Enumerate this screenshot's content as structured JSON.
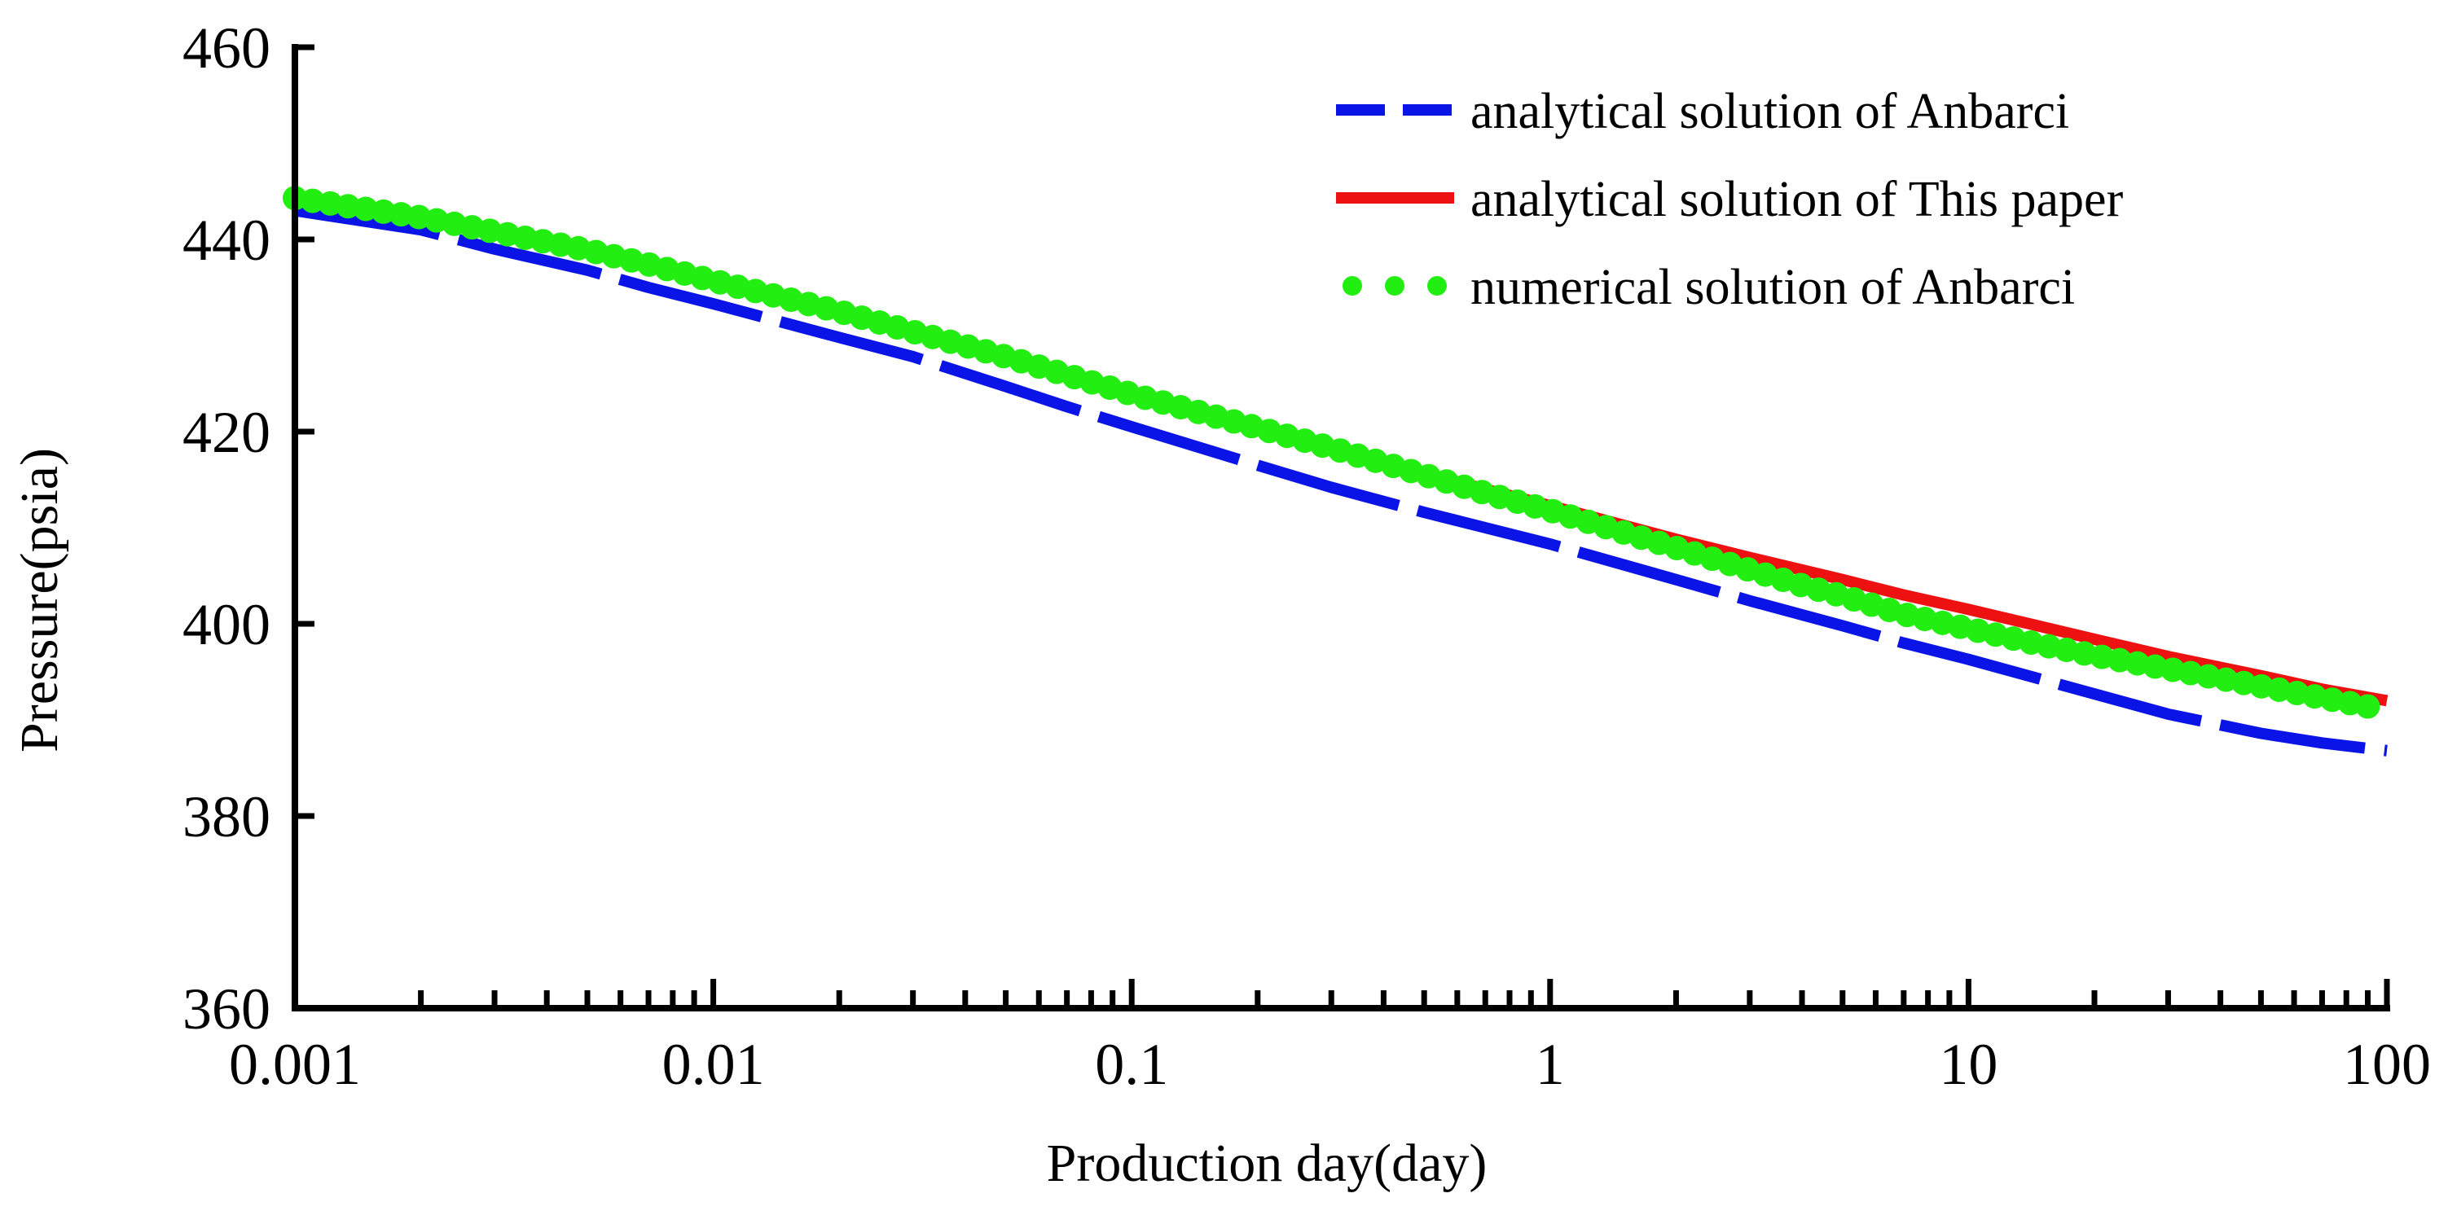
{
  "chart_data": {
    "type": "line",
    "title": "",
    "xlabel": "Production day(day)",
    "ylabel": "Pressure(psia)",
    "xscale": "log",
    "xlim": [
      0.001,
      100
    ],
    "ylim": [
      360,
      460
    ],
    "xticks": [
      0.001,
      0.01,
      0.1,
      1,
      10,
      100
    ],
    "xtick_labels": [
      "0.001",
      "0.01",
      "0.1",
      "1",
      "10",
      "100"
    ],
    "yticks": [
      360,
      380,
      400,
      420,
      440,
      460
    ],
    "ytick_labels": [
      "360",
      "380",
      "400",
      "420",
      "440",
      "460"
    ],
    "grid": false,
    "legend_position": "top-right",
    "series": [
      {
        "name": "analytical solution of Anbarci",
        "style": "dashed",
        "color": "#0a14e6",
        "x": [
          0.001,
          0.002,
          0.003,
          0.005,
          0.007,
          0.01,
          0.02,
          0.03,
          0.05,
          0.07,
          0.1,
          0.2,
          0.3,
          0.5,
          0.7,
          1,
          2,
          3,
          5,
          7,
          10,
          20,
          30,
          50,
          70,
          100
        ],
        "y": [
          443,
          441,
          439,
          436.8,
          435,
          433.3,
          429.8,
          427.8,
          424.7,
          422.6,
          420.5,
          416.5,
          414.2,
          411.6,
          410,
          408.3,
          404.6,
          402.4,
          399.8,
          398,
          396.3,
          392.7,
          390.6,
          388.6,
          387.6,
          386.8
        ]
      },
      {
        "name": "analytical solution of This paper",
        "style": "solid",
        "color": "#ee1111",
        "x": [
          0.001,
          0.002,
          0.003,
          0.005,
          0.007,
          0.01,
          0.02,
          0.03,
          0.05,
          0.07,
          0.1,
          0.2,
          0.3,
          0.5,
          0.7,
          1,
          2,
          3,
          5,
          7,
          10,
          20,
          30,
          50,
          70,
          100
        ],
        "y": [
          444,
          442.2,
          440.8,
          438.9,
          437.5,
          435.8,
          432.6,
          430.5,
          427.8,
          425.9,
          424,
          420.4,
          418.3,
          415.7,
          414,
          412.3,
          408.8,
          406.9,
          404.6,
          403,
          401.5,
          398.4,
          396.6,
          394.6,
          393.2,
          392
        ]
      },
      {
        "name": "numerical solution of Anbarci",
        "style": "dotted-markers",
        "color": "#22ee11",
        "x": [
          0.001,
          0.002,
          0.003,
          0.005,
          0.007,
          0.01,
          0.02,
          0.03,
          0.05,
          0.07,
          0.1,
          0.2,
          0.3,
          0.5,
          0.7,
          1,
          1.5,
          2,
          3,
          4,
          5,
          7,
          10,
          15,
          20,
          30,
          40,
          50,
          70,
          90
        ],
        "y": [
          444.3,
          442.3,
          440.8,
          438.9,
          437.4,
          435.7,
          432.5,
          430.4,
          427.8,
          425.9,
          423.9,
          420.4,
          418.3,
          415.5,
          413.6,
          411.8,
          409.5,
          407.9,
          405.6,
          404.0,
          402.9,
          401.0,
          399.5,
          397.8,
          396.7,
          395.3,
          394.3,
          393.5,
          392.3,
          391.4
        ]
      }
    ]
  }
}
